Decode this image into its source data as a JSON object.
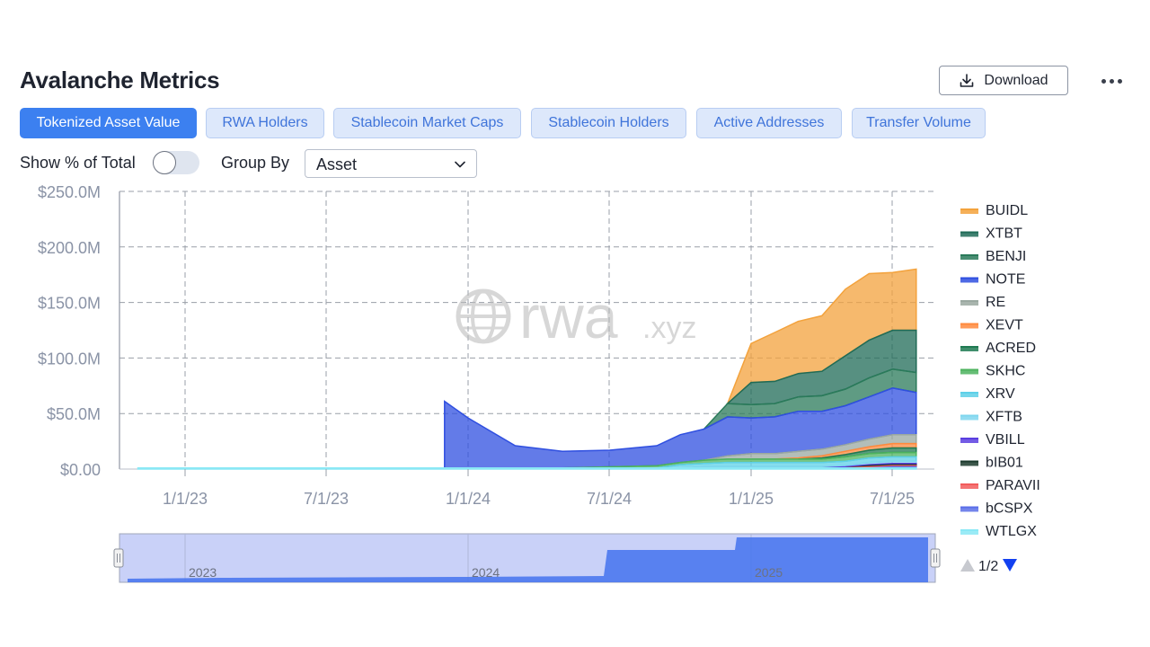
{
  "header": {
    "title": "Avalanche Metrics",
    "download_label": "Download"
  },
  "tabs": [
    {
      "label": "Tokenized Asset Value",
      "active": true
    },
    {
      "label": "RWA Holders",
      "active": false
    },
    {
      "label": "Stablecoin Market Caps",
      "active": false
    },
    {
      "label": "Stablecoin Holders",
      "active": false
    },
    {
      "label": "Active Addresses",
      "active": false
    },
    {
      "label": "Transfer Volume",
      "active": false
    }
  ],
  "controls": {
    "show_pct_label": "Show % of Total",
    "show_pct_on": false,
    "group_by_label": "Group By",
    "group_by_value": "Asset"
  },
  "watermark": {
    "main": "rwa",
    "suffix": ".xyz"
  },
  "legend_pager": "1/2",
  "navigator": {
    "labels": [
      "2023",
      "2024",
      "2025"
    ]
  },
  "chart_data": {
    "type": "area",
    "stacked": true,
    "grid": true,
    "legend_position": "right",
    "y_ticks": [
      "$0.00",
      "$50.0M",
      "$100.0M",
      "$150.0M",
      "$200.0M",
      "$250.0M"
    ],
    "x_ticks": [
      "1/1/23",
      "7/1/23",
      "1/1/24",
      "7/1/24",
      "1/1/25",
      "7/1/25"
    ],
    "ylim": [
      0,
      250
    ],
    "x": [
      "2022-11",
      "2023-06",
      "2023-12",
      "2023-12",
      "2024-01",
      "2024-03",
      "2024-05",
      "2024-07",
      "2024-09",
      "2024-10",
      "2024-11",
      "2024-12",
      "2025-01",
      "2025-02",
      "2025-03",
      "2025-04",
      "2025-05",
      "2025-06",
      "2025-07",
      "2025-08"
    ],
    "series": [
      {
        "name": "BUIDL",
        "color": "#f3a23c",
        "values": [
          0,
          0,
          0,
          0,
          0,
          0,
          0,
          0,
          0,
          0,
          0,
          0,
          35,
          44,
          47,
          50,
          60,
          60,
          52,
          55
        ]
      },
      {
        "name": "XTBT",
        "color": "#1f6b57",
        "values": [
          0,
          0,
          0,
          0,
          0,
          0,
          0,
          0,
          0,
          0,
          0,
          0,
          20,
          20,
          21,
          22,
          30,
          34,
          35,
          38
        ]
      },
      {
        "name": "BENJI",
        "color": "#2a7a5a",
        "values": [
          0,
          0,
          0,
          0,
          0,
          0,
          0,
          0,
          0,
          0,
          0,
          12,
          12,
          12,
          13,
          14,
          15,
          17,
          17,
          18
        ]
      },
      {
        "name": "NOTE",
        "color": "#2f4fe0",
        "values": [
          0,
          0,
          0,
          60,
          45,
          20,
          15,
          15,
          18,
          25,
          28,
          35,
          32,
          33,
          36,
          34,
          35,
          38,
          42,
          38
        ]
      },
      {
        "name": "RE",
        "color": "#9aa8a0",
        "values": [
          0,
          0,
          0,
          0,
          0,
          0,
          0,
          0,
          0,
          0,
          0,
          3,
          5,
          5,
          6,
          6,
          6,
          7,
          8,
          8
        ]
      },
      {
        "name": "XEVT",
        "color": "#ff8a3d",
        "values": [
          0,
          0,
          0,
          0,
          0,
          0,
          0,
          0,
          0,
          0,
          0,
          0,
          0,
          0,
          1,
          2,
          3,
          3,
          4,
          4
        ]
      },
      {
        "name": "ACRED",
        "color": "#1f7a52",
        "values": [
          0,
          0,
          0,
          0,
          0,
          0,
          0,
          0,
          0,
          0,
          0,
          0,
          0,
          0,
          0,
          1,
          2,
          3,
          4,
          4
        ]
      },
      {
        "name": "SKHC",
        "color": "#4cb35e",
        "values": [
          0,
          0,
          0,
          0,
          0,
          0,
          0,
          1,
          2,
          2,
          3,
          3,
          3,
          3,
          3,
          3,
          4,
          4,
          4,
          4
        ]
      },
      {
        "name": "XRV",
        "color": "#5dd0e8",
        "values": [
          0,
          0,
          0,
          0,
          0,
          0,
          0,
          0,
          0,
          3,
          3,
          4,
          4,
          4,
          4,
          4,
          4,
          4,
          4,
          4
        ]
      },
      {
        "name": "XFTB",
        "color": "#7fd6ee",
        "values": [
          0,
          0,
          0,
          0,
          0,
          0,
          0,
          0,
          0,
          0,
          1,
          1,
          1,
          1,
          1,
          1,
          1,
          2,
          2,
          2
        ]
      },
      {
        "name": "VBILL",
        "color": "#5a3ee0",
        "values": [
          0,
          0,
          0,
          0,
          0,
          0,
          0,
          0,
          0,
          0,
          0,
          0,
          0,
          0,
          0,
          0,
          1,
          1,
          1,
          1
        ]
      },
      {
        "name": "bIB01",
        "color": "#1b3a2c",
        "values": [
          0,
          0,
          0,
          0,
          0,
          0,
          0,
          0,
          0,
          0,
          0,
          0,
          0,
          0,
          0,
          0,
          0,
          1,
          1,
          1
        ]
      },
      {
        "name": "PARAVII",
        "color": "#f25c5c",
        "values": [
          0,
          0,
          0,
          0,
          0,
          0,
          0,
          0,
          0,
          0,
          0,
          0,
          0,
          0,
          0,
          0,
          0,
          1,
          1,
          1
        ]
      },
      {
        "name": "bCSPX",
        "color": "#5a6ee8",
        "values": [
          0,
          0,
          0,
          0,
          0,
          0,
          0,
          0,
          0,
          0,
          0,
          0,
          0,
          0,
          0,
          0,
          0,
          0,
          1,
          1
        ]
      },
      {
        "name": "WTLGX",
        "color": "#8ae8f5",
        "values": [
          1,
          1,
          1,
          1,
          1,
          1,
          1,
          1,
          1,
          1,
          1,
          1,
          1,
          1,
          1,
          1,
          1,
          1,
          1,
          1
        ]
      }
    ]
  }
}
